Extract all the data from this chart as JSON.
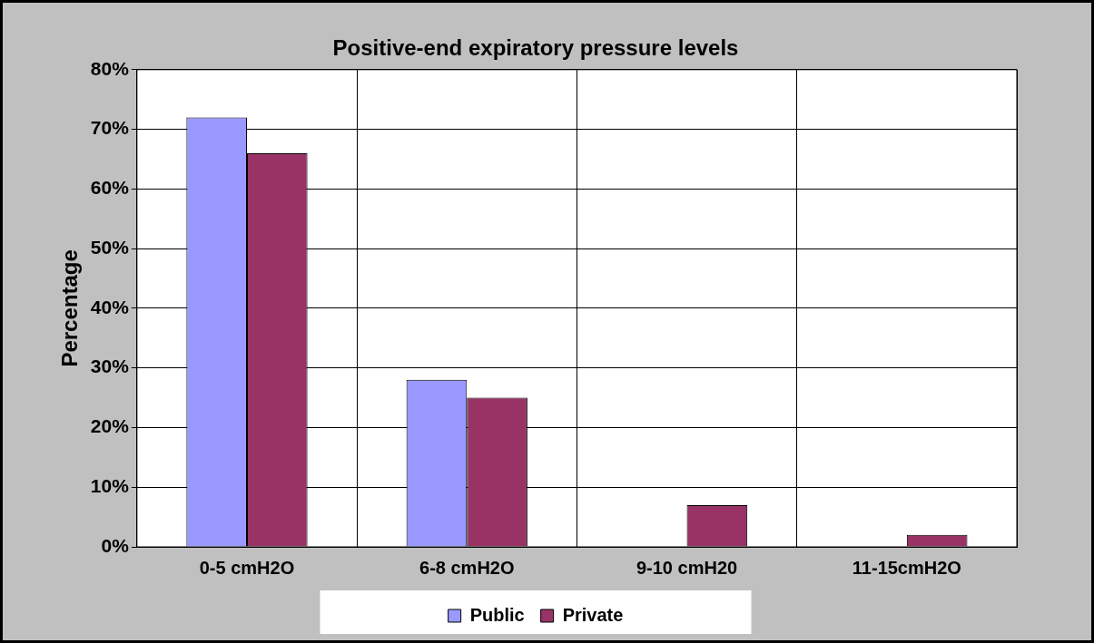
{
  "chart_data": {
    "type": "bar",
    "title": "Positive-end expiratory pressure levels",
    "ylabel": "Percentage",
    "categories": [
      "0-5 cmH2O",
      "6-8 cmH2O",
      "9-10 cmH20",
      "11-15cmH2O"
    ],
    "series": [
      {
        "name": "Public",
        "color": "#9999ff",
        "values": [
          72,
          28,
          0,
          0
        ]
      },
      {
        "name": "Private",
        "color": "#993366",
        "values": [
          66,
          25,
          7,
          2
        ]
      }
    ],
    "ylim": [
      0,
      80
    ],
    "yticks": [
      {
        "value": 0,
        "label": "0%"
      },
      {
        "value": 10,
        "label": "10%"
      },
      {
        "value": 20,
        "label": "20%"
      },
      {
        "value": 30,
        "label": "30%"
      },
      {
        "value": 40,
        "label": "40%"
      },
      {
        "value": 50,
        "label": "50%"
      },
      {
        "value": 60,
        "label": "60%"
      },
      {
        "value": 70,
        "label": "70%"
      },
      {
        "value": 80,
        "label": "80%"
      }
    ],
    "grid": true,
    "legend": "bottom"
  }
}
